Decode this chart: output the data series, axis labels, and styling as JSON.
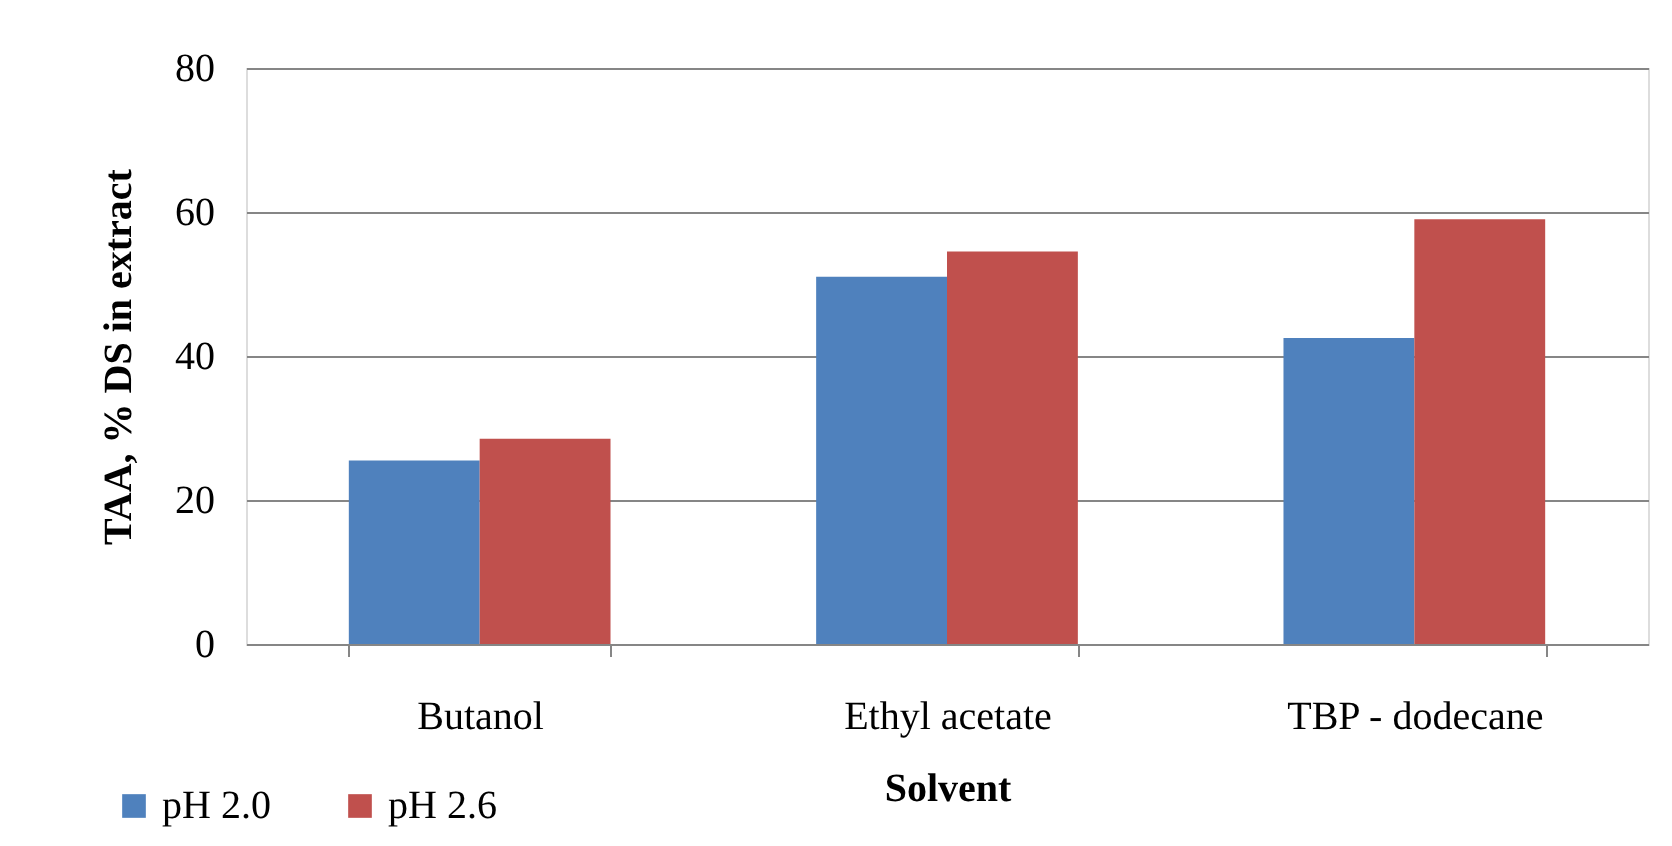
{
  "chart_data": {
    "type": "bar",
    "xlabel": "Solvent",
    "ylabel": "TAA, % DS in extract",
    "categories": [
      "Butanol",
      "Ethyl acetate",
      "TBP - dodecane"
    ],
    "series": [
      {
        "name": "pH 2.0",
        "color": "#4f81bd",
        "values": [
          25.5,
          51,
          42.5
        ]
      },
      {
        "name": "pH 2.6",
        "color": "#c0504d",
        "values": [
          28.5,
          54.5,
          59
        ]
      }
    ],
    "ylim": [
      0,
      80
    ],
    "yticks": [
      0,
      20,
      40,
      60,
      80
    ],
    "grid": "y",
    "legend": "bottom left"
  }
}
